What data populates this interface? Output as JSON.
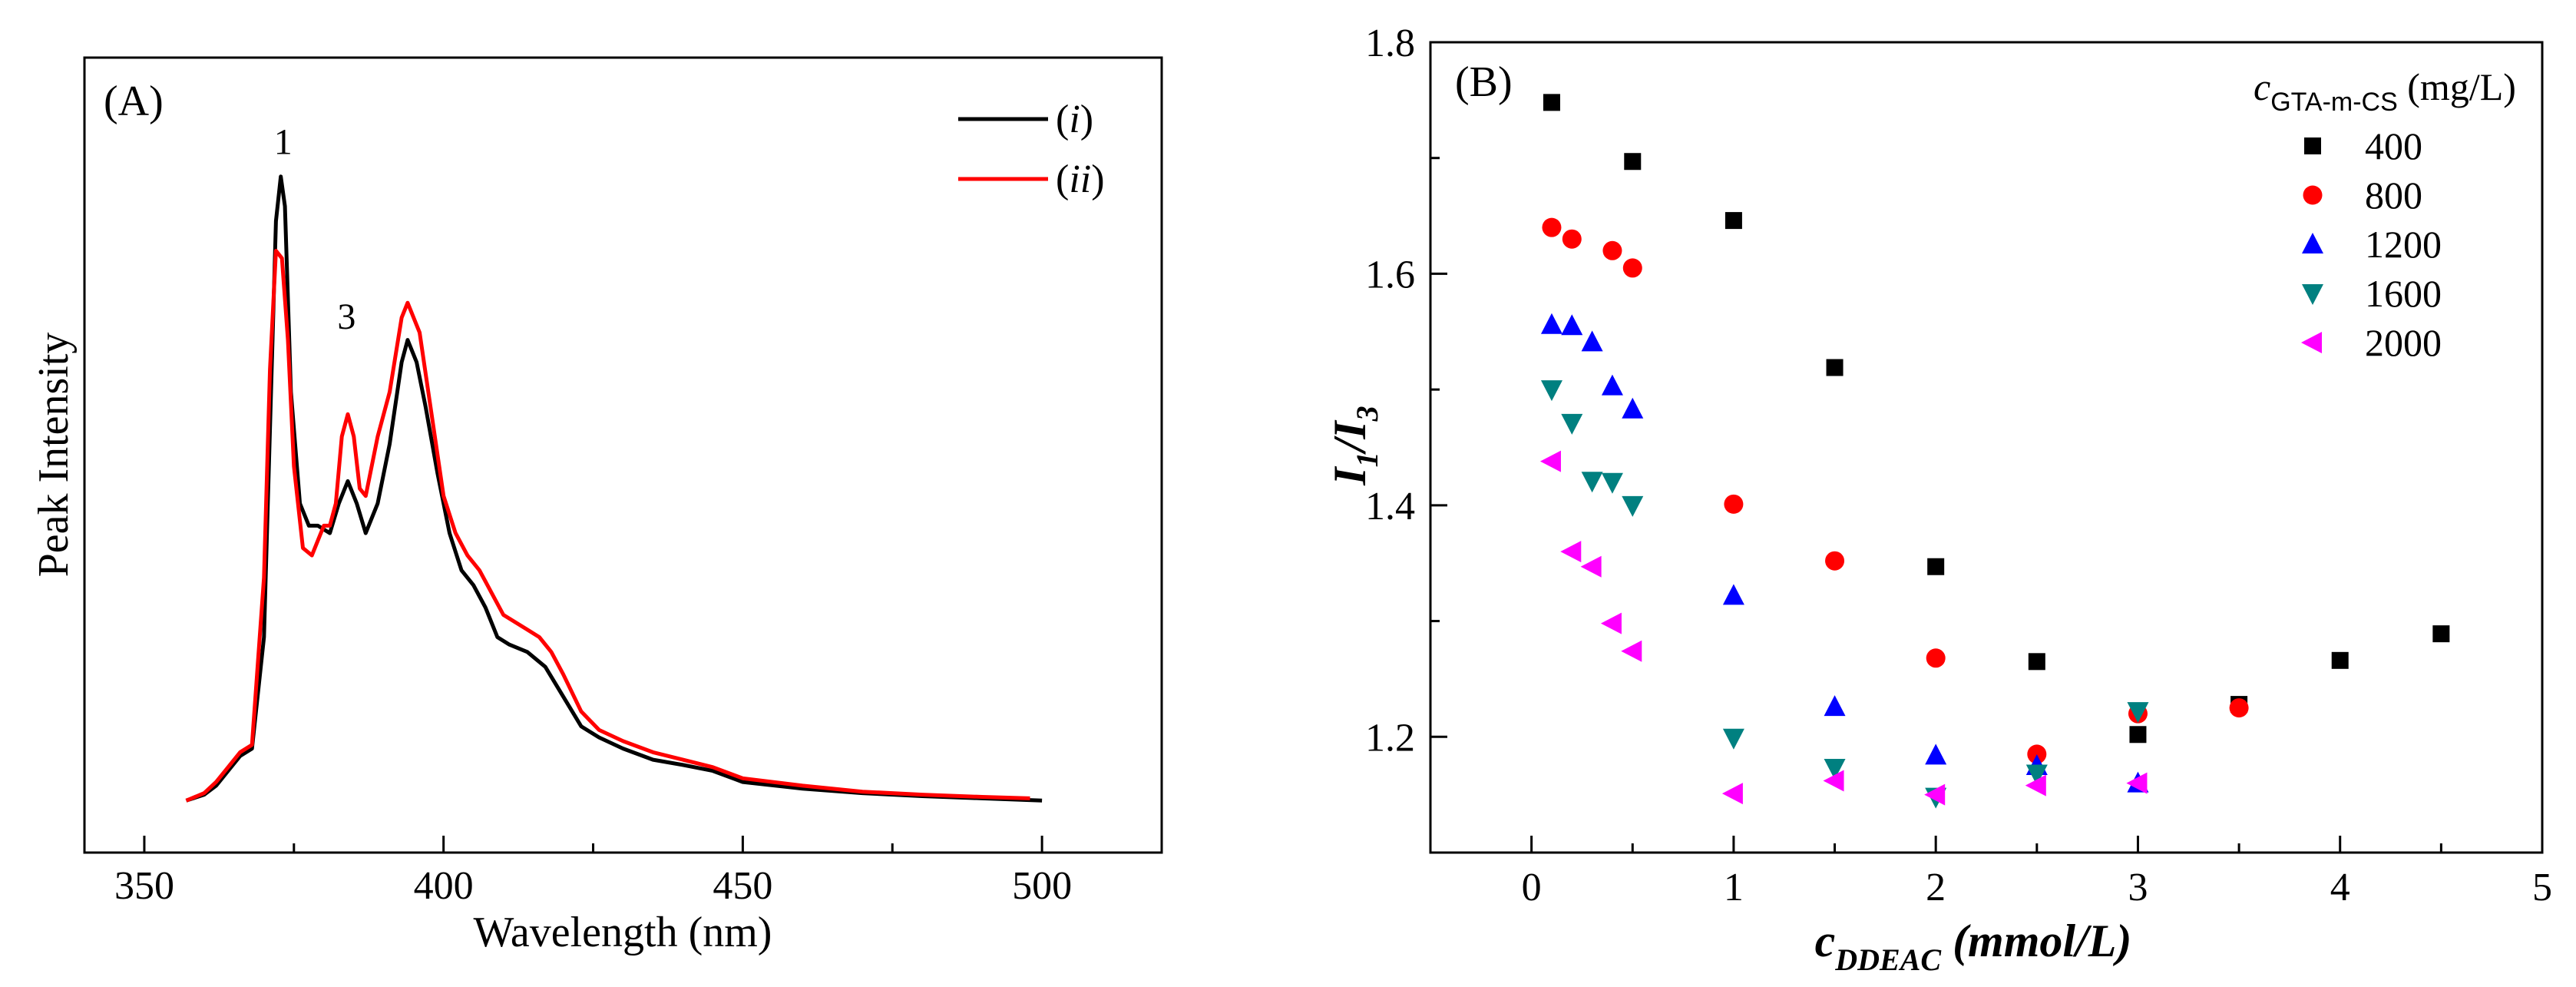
{
  "chart_data": [
    {
      "type": "line",
      "panel_label": "(A)",
      "xlabel": "Wavelength (nm)",
      "ylabel": "Peak Intensity",
      "xlim": [
        340,
        520
      ],
      "ylim": [
        -0.07,
        1.0
      ],
      "x_ticks": [
        350,
        400,
        450,
        500
      ],
      "x_tick_labels": [
        "350",
        "400",
        "450",
        "500"
      ],
      "peak_labels": [
        {
          "text": "1",
          "x": 373.2,
          "y": 0.87
        },
        {
          "text": "3",
          "x": 383.8,
          "y": 0.635
        }
      ],
      "legend": {
        "placement": "top-right",
        "entries": [
          {
            "prefix": "(",
            "name": "i",
            "suffix": ")",
            "color": "#000000"
          },
          {
            "prefix": "(",
            "name": "ii",
            "suffix": ")",
            "color": "#ff0000"
          }
        ]
      },
      "series": [
        {
          "name": "(i)",
          "color": "#000000",
          "x": [
            357,
            360,
            362,
            364,
            366,
            368,
            370,
            371,
            372,
            372.8,
            373.5,
            374.5,
            376,
            377.5,
            379,
            381,
            382.5,
            384,
            385.5,
            387,
            389,
            391,
            393,
            394,
            395.5,
            397,
            399,
            401,
            403,
            405,
            407,
            409,
            411,
            414,
            417,
            420,
            423,
            426,
            430,
            435,
            440,
            445,
            450,
            460,
            470,
            480,
            490,
            500
          ],
          "y": [
            0.0,
            0.008,
            0.02,
            0.04,
            0.06,
            0.07,
            0.22,
            0.5,
            0.78,
            0.84,
            0.8,
            0.55,
            0.4,
            0.37,
            0.37,
            0.36,
            0.4,
            0.43,
            0.4,
            0.36,
            0.4,
            0.48,
            0.59,
            0.62,
            0.59,
            0.53,
            0.44,
            0.36,
            0.31,
            0.29,
            0.26,
            0.22,
            0.21,
            0.2,
            0.18,
            0.14,
            0.1,
            0.085,
            0.07,
            0.055,
            0.048,
            0.04,
            0.025,
            0.016,
            0.01,
            0.006,
            0.003,
            0.0
          ]
        },
        {
          "name": "(ii)",
          "color": "#ff0000",
          "x": [
            357,
            360,
            362,
            364,
            366,
            368,
            370,
            371,
            372,
            373,
            374,
            375,
            376.5,
            378,
            379,
            380,
            381,
            382,
            383,
            384,
            385,
            386,
            387,
            388,
            389,
            391,
            393,
            394,
            396,
            398,
            400,
            402,
            404,
            406,
            408,
            410,
            412,
            414,
            416,
            418,
            420,
            423,
            426,
            430,
            435,
            440,
            445,
            450,
            460,
            470,
            480,
            490,
            498
          ],
          "y": [
            0.0,
            0.01,
            0.025,
            0.045,
            0.065,
            0.075,
            0.3,
            0.58,
            0.74,
            0.73,
            0.62,
            0.45,
            0.34,
            0.33,
            0.35,
            0.37,
            0.37,
            0.4,
            0.49,
            0.52,
            0.49,
            0.42,
            0.41,
            0.45,
            0.49,
            0.55,
            0.65,
            0.67,
            0.63,
            0.52,
            0.41,
            0.36,
            0.33,
            0.31,
            0.28,
            0.25,
            0.24,
            0.23,
            0.22,
            0.2,
            0.17,
            0.12,
            0.095,
            0.08,
            0.065,
            0.055,
            0.045,
            0.03,
            0.02,
            0.012,
            0.008,
            0.005,
            0.003
          ]
        }
      ]
    },
    {
      "type": "scatter",
      "panel_label": "(B)",
      "xlabel": {
        "main": "c",
        "sub": "DDEAC",
        "rest": " (mmol/L)"
      },
      "ylabel": {
        "first": "I",
        "first_sub": "1",
        "sep": "/",
        "second": "I",
        "second_sub": "3"
      },
      "xlim": [
        -0.5,
        5.0
      ],
      "ylim": [
        1.1,
        1.8
      ],
      "x_ticks": [
        0,
        1,
        2,
        3,
        4,
        5
      ],
      "x_tick_labels": [
        "0",
        "1",
        "2",
        "3",
        "4",
        "5"
      ],
      "y_ticks": [
        1.2,
        1.4,
        1.6,
        1.8
      ],
      "y_tick_labels": [
        "1.2",
        "1.4",
        "1.6",
        "1.8"
      ],
      "legend_title": {
        "main": "c",
        "sub": "GTA-m-CS",
        "unit": " (mg/L)"
      },
      "legend_placement": "top-right",
      "series": [
        {
          "name": "400",
          "marker": "square",
          "color": "#000000",
          "x": [
            0.1,
            0.5,
            1.0,
            1.5,
            2.0,
            2.5,
            3.0,
            3.5,
            4.0,
            4.5
          ],
          "y": [
            1.748,
            1.697,
            1.646,
            1.519,
            1.347,
            1.265,
            1.202,
            1.228,
            1.266,
            1.289
          ]
        },
        {
          "name": "800",
          "marker": "circle",
          "color": "#ff0000",
          "x": [
            0.1,
            0.2,
            0.4,
            0.5,
            1.0,
            1.5,
            2.0,
            2.5,
            3.0,
            3.5
          ],
          "y": [
            1.64,
            1.63,
            1.62,
            1.605,
            1.401,
            1.352,
            1.268,
            1.185,
            1.22,
            1.225
          ]
        },
        {
          "name": "1200",
          "marker": "triangle-up",
          "color": "#0000ff",
          "x": [
            0.1,
            0.2,
            0.3,
            0.4,
            0.5,
            1.0,
            1.5,
            2.0,
            2.5,
            3.0
          ],
          "y": [
            1.556,
            1.555,
            1.541,
            1.503,
            1.483,
            1.322,
            1.226,
            1.184,
            1.175,
            1.16
          ]
        },
        {
          "name": "1600",
          "marker": "triangle-down",
          "color": "#008080",
          "x": [
            0.1,
            0.2,
            0.3,
            0.4,
            0.5,
            1.0,
            1.5,
            2.0,
            2.5,
            3.0
          ],
          "y": [
            1.5,
            1.471,
            1.421,
            1.42,
            1.4,
            1.199,
            1.173,
            1.148,
            1.168,
            1.222
          ]
        },
        {
          "name": "2000",
          "marker": "triangle-left",
          "color": "#ff00ff",
          "x": [
            0.1,
            0.2,
            0.3,
            0.4,
            0.5,
            1.0,
            1.5,
            2.0,
            2.5,
            3.0
          ],
          "y": [
            1.438,
            1.36,
            1.347,
            1.298,
            1.274,
            1.151,
            1.162,
            1.15,
            1.158,
            1.16
          ]
        }
      ]
    }
  ]
}
